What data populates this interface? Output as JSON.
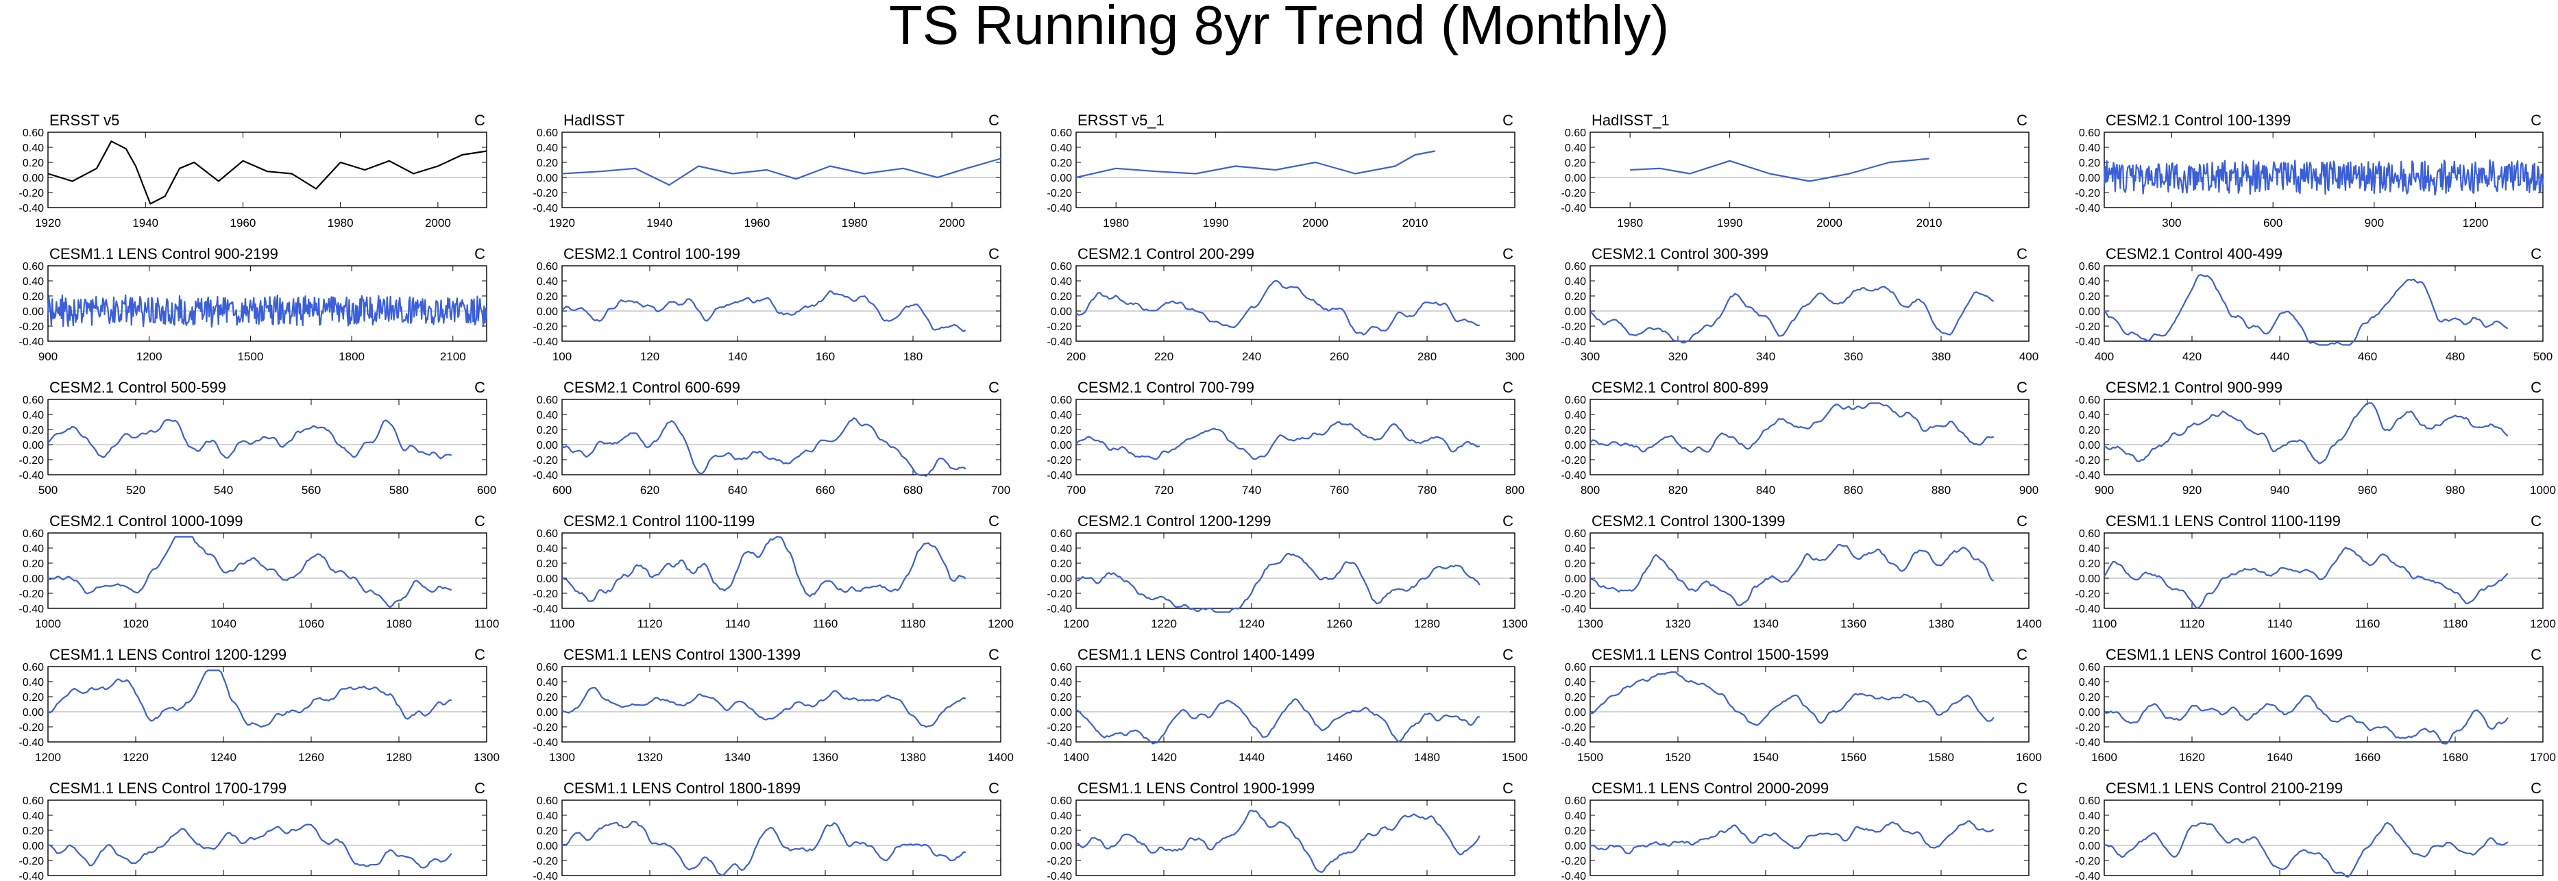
{
  "title": "TS Running 8yr Trend (Monthly)",
  "colors": {
    "obs_black": "#000000",
    "model_blue": "#3a5fd9",
    "zero_line": "#bbbbbb"
  },
  "chart_data": [
    {
      "type": "line",
      "title": "ERSST v5",
      "units": "C",
      "color": "#000000",
      "xlim": [
        1920,
        2010
      ],
      "xticks": [
        1920,
        1940,
        1960,
        1980,
        2000
      ],
      "ylim": [
        -0.4,
        0.6
      ],
      "yticks": [
        -0.4,
        -0.2,
        0,
        0.2,
        0.4,
        0.6
      ],
      "grid": false,
      "x": [
        1920,
        1925,
        1930,
        1933,
        1936,
        1938,
        1941,
        1944,
        1947,
        1950,
        1955,
        1960,
        1965,
        1970,
        1975,
        1980,
        1985,
        1990,
        1995,
        2000,
        2005,
        2010
      ],
      "values": [
        0.05,
        -0.05,
        0.12,
        0.48,
        0.38,
        0.15,
        -0.35,
        -0.25,
        0.12,
        0.2,
        -0.05,
        0.22,
        0.08,
        0.05,
        -0.15,
        0.2,
        0.1,
        0.22,
        0.05,
        0.15,
        0.3,
        0.35
      ]
    },
    {
      "type": "line",
      "title": "HadISST",
      "units": "C",
      "color": "#3a5fd9",
      "xlim": [
        1920,
        2010
      ],
      "xticks": [
        1920,
        1940,
        1960,
        1980,
        2000
      ],
      "ylim": [
        -0.4,
        0.6
      ],
      "yticks": [
        -0.4,
        -0.2,
        0,
        0.2,
        0.4,
        0.6
      ],
      "grid": false,
      "x": [
        1920,
        1928,
        1935,
        1942,
        1948,
        1955,
        1962,
        1968,
        1975,
        1982,
        1990,
        1997,
        2003,
        2010
      ],
      "values": [
        0.05,
        0.08,
        0.12,
        -0.1,
        0.15,
        0.05,
        0.1,
        -0.02,
        0.15,
        0.05,
        0.12,
        0.0,
        0.12,
        0.25
      ]
    },
    {
      "type": "line",
      "title": "ERSST v5_1",
      "units": "C",
      "color": "#3a5fd9",
      "xlim": [
        1976,
        2020
      ],
      "xticks": [
        1980,
        1990,
        2000,
        2010
      ],
      "ylim": [
        -0.4,
        0.6
      ],
      "yticks": [
        -0.4,
        -0.2,
        0,
        0.2,
        0.4,
        0.6
      ],
      "grid": false,
      "x": [
        1976,
        1980,
        1984,
        1988,
        1992,
        1996,
        2000,
        2004,
        2008,
        2010,
        2012
      ],
      "values": [
        0.0,
        0.12,
        0.08,
        0.05,
        0.15,
        0.1,
        0.2,
        0.05,
        0.15,
        0.3,
        0.35
      ]
    },
    {
      "type": "line",
      "title": "HadISST_1",
      "units": "C",
      "color": "#3a5fd9",
      "xlim": [
        1976,
        2020
      ],
      "xticks": [
        1980,
        1990,
        2000,
        2010
      ],
      "ylim": [
        -0.4,
        0.6
      ],
      "yticks": [
        -0.4,
        -0.2,
        0,
        0.2,
        0.4,
        0.6
      ],
      "grid": false,
      "x": [
        1980,
        1983,
        1986,
        1990,
        1994,
        1998,
        2002,
        2006,
        2010
      ],
      "values": [
        0.1,
        0.12,
        0.05,
        0.22,
        0.05,
        -0.05,
        0.05,
        0.2,
        0.25
      ]
    },
    {
      "type": "line",
      "title": "CESM2.1 Control 100-1399",
      "units": "C",
      "color": "#3a5fd9",
      "xlim": [
        100,
        1400
      ],
      "xticks": [
        300,
        600,
        900,
        1200
      ],
      "ylim": [
        -0.4,
        0.6
      ],
      "yticks": [
        -0.4,
        -0.2,
        0,
        0.2,
        0.4,
        0.6
      ],
      "grid": false,
      "noise": {
        "start": 100,
        "end": 1400,
        "seed": 11,
        "amp": 0.18
      }
    },
    {
      "type": "line",
      "title": "CESM1.1 LENS Control 900-2199",
      "units": "C",
      "color": "#3a5fd9",
      "xlim": [
        900,
        2200
      ],
      "xticks": [
        900,
        1200,
        1500,
        1800,
        2100
      ],
      "ylim": [
        -0.4,
        0.6
      ],
      "yticks": [
        -0.4,
        -0.2,
        0,
        0.2,
        0.4,
        0.6
      ],
      "grid": false,
      "noise": {
        "start": 900,
        "end": 2200,
        "seed": 23,
        "amp": 0.16
      }
    },
    {
      "type": "line",
      "title": "CESM2.1 Control 100-199",
      "units": "C",
      "color": "#3a5fd9",
      "xlim": [
        100,
        200
      ],
      "xticks": [
        100,
        120,
        140,
        160,
        180
      ],
      "ylim": [
        -0.4,
        0.6
      ],
      "yticks": [
        -0.4,
        -0.2,
        0,
        0.2,
        0.4,
        0.6
      ],
      "grid": false,
      "noise": {
        "start": 100,
        "end": 192,
        "seed": 31,
        "amp": 0.12
      }
    },
    {
      "type": "line",
      "title": "CESM2.1 Control 200-299",
      "units": "C",
      "color": "#3a5fd9",
      "xlim": [
        200,
        300
      ],
      "xticks": [
        200,
        220,
        240,
        260,
        280,
        300
      ],
      "ylim": [
        -0.4,
        0.6
      ],
      "yticks": [
        -0.4,
        -0.2,
        0,
        0.2,
        0.4,
        0.6
      ],
      "grid": false,
      "noise": {
        "start": 200,
        "end": 292,
        "seed": 37,
        "amp": 0.12
      }
    },
    {
      "type": "line",
      "title": "CESM2.1 Control 300-399",
      "units": "C",
      "color": "#3a5fd9",
      "xlim": [
        300,
        400
      ],
      "xticks": [
        300,
        320,
        340,
        360,
        380,
        400
      ],
      "ylim": [
        -0.4,
        0.6
      ],
      "yticks": [
        -0.4,
        -0.2,
        0,
        0.2,
        0.4,
        0.6
      ],
      "grid": false,
      "noise": {
        "start": 300,
        "end": 392,
        "seed": 41,
        "amp": 0.12
      }
    },
    {
      "type": "line",
      "title": "CESM2.1 Control 400-499",
      "units": "C",
      "color": "#3a5fd9",
      "xlim": [
        400,
        500
      ],
      "xticks": [
        400,
        420,
        440,
        460,
        480,
        500
      ],
      "ylim": [
        -0.4,
        0.6
      ],
      "yticks": [
        -0.4,
        -0.2,
        0,
        0.2,
        0.4,
        0.6
      ],
      "grid": false,
      "noise": {
        "start": 400,
        "end": 492,
        "seed": 43,
        "amp": 0.13
      }
    },
    {
      "type": "line",
      "title": "CESM2.1 Control 500-599",
      "units": "C",
      "color": "#3a5fd9",
      "xlim": [
        500,
        600
      ],
      "xticks": [
        500,
        520,
        540,
        560,
        580,
        600
      ],
      "ylim": [
        -0.4,
        0.6
      ],
      "yticks": [
        -0.4,
        -0.2,
        0,
        0.2,
        0.4,
        0.6
      ],
      "grid": false,
      "noise": {
        "start": 500,
        "end": 592,
        "seed": 47,
        "amp": 0.13
      }
    },
    {
      "type": "line",
      "title": "CESM2.1 Control 600-699",
      "units": "C",
      "color": "#3a5fd9",
      "xlim": [
        600,
        700
      ],
      "xticks": [
        600,
        620,
        640,
        660,
        680,
        700
      ],
      "ylim": [
        -0.4,
        0.6
      ],
      "yticks": [
        -0.4,
        -0.2,
        0,
        0.2,
        0.4,
        0.6
      ],
      "grid": false,
      "noise": {
        "start": 600,
        "end": 692,
        "seed": 53,
        "amp": 0.12
      }
    },
    {
      "type": "line",
      "title": "CESM2.1 Control 700-799",
      "units": "C",
      "color": "#3a5fd9",
      "xlim": [
        700,
        800
      ],
      "xticks": [
        700,
        720,
        740,
        760,
        780,
        800
      ],
      "ylim": [
        -0.4,
        0.6
      ],
      "yticks": [
        -0.4,
        -0.2,
        0,
        0.2,
        0.4,
        0.6
      ],
      "grid": false,
      "noise": {
        "start": 700,
        "end": 792,
        "seed": 59,
        "amp": 0.1
      }
    },
    {
      "type": "line",
      "title": "CESM2.1 Control 800-899",
      "units": "C",
      "color": "#3a5fd9",
      "xlim": [
        800,
        900
      ],
      "xticks": [
        800,
        820,
        840,
        860,
        880,
        900
      ],
      "ylim": [
        -0.4,
        0.6
      ],
      "yticks": [
        -0.4,
        -0.2,
        0,
        0.2,
        0.4,
        0.6
      ],
      "grid": false,
      "noise": {
        "start": 800,
        "end": 892,
        "seed": 61,
        "amp": 0.12
      }
    },
    {
      "type": "line",
      "title": "CESM2.1 Control 900-999",
      "units": "C",
      "color": "#3a5fd9",
      "xlim": [
        900,
        1000
      ],
      "xticks": [
        900,
        920,
        940,
        960,
        980,
        1000
      ],
      "ylim": [
        -0.4,
        0.6
      ],
      "yticks": [
        -0.4,
        -0.2,
        0,
        0.2,
        0.4,
        0.6
      ],
      "grid": false,
      "noise": {
        "start": 900,
        "end": 992,
        "seed": 67,
        "amp": 0.14
      }
    },
    {
      "type": "line",
      "title": "CESM2.1 Control 1000-1099",
      "units": "C",
      "color": "#3a5fd9",
      "xlim": [
        1000,
        1100
      ],
      "xticks": [
        1000,
        1020,
        1040,
        1060,
        1080,
        1100
      ],
      "ylim": [
        -0.4,
        0.6
      ],
      "yticks": [
        -0.4,
        -0.2,
        0,
        0.2,
        0.4,
        0.6
      ],
      "grid": false,
      "noise": {
        "start": 1000,
        "end": 1092,
        "seed": 71,
        "amp": 0.12
      }
    },
    {
      "type": "line",
      "title": "CESM2.1 Control 1100-1199",
      "units": "C",
      "color": "#3a5fd9",
      "xlim": [
        1100,
        1200
      ],
      "xticks": [
        1100,
        1120,
        1140,
        1160,
        1180,
        1200
      ],
      "ylim": [
        -0.4,
        0.6
      ],
      "yticks": [
        -0.4,
        -0.2,
        0,
        0.2,
        0.4,
        0.6
      ],
      "grid": false,
      "noise": {
        "start": 1100,
        "end": 1192,
        "seed": 73,
        "amp": 0.16
      }
    },
    {
      "type": "line",
      "title": "CESM2.1 Control 1200-1299",
      "units": "C",
      "color": "#3a5fd9",
      "xlim": [
        1200,
        1300
      ],
      "xticks": [
        1200,
        1220,
        1240,
        1260,
        1280,
        1300
      ],
      "ylim": [
        -0.4,
        0.6
      ],
      "yticks": [
        -0.4,
        -0.2,
        0,
        0.2,
        0.4,
        0.6
      ],
      "grid": false,
      "noise": {
        "start": 1200,
        "end": 1292,
        "seed": 79,
        "amp": 0.12
      }
    },
    {
      "type": "line",
      "title": "CESM2.1 Control 1300-1399",
      "units": "C",
      "color": "#3a5fd9",
      "xlim": [
        1300,
        1400
      ],
      "xticks": [
        1300,
        1320,
        1340,
        1360,
        1380,
        1400
      ],
      "ylim": [
        -0.4,
        0.6
      ],
      "yticks": [
        -0.4,
        -0.2,
        0,
        0.2,
        0.4,
        0.6
      ],
      "grid": false,
      "noise": {
        "start": 1300,
        "end": 1392,
        "seed": 83,
        "amp": 0.13
      }
    },
    {
      "type": "line",
      "title": "CESM1.1 LENS Control 1100-1199",
      "units": "C",
      "color": "#3a5fd9",
      "xlim": [
        1100,
        1200
      ],
      "xticks": [
        1100,
        1120,
        1140,
        1160,
        1180,
        1200
      ],
      "ylim": [
        -0.4,
        0.6
      ],
      "yticks": [
        -0.4,
        -0.2,
        0,
        0.2,
        0.4,
        0.6
      ],
      "grid": false,
      "noise": {
        "start": 1100,
        "end": 1192,
        "seed": 89,
        "amp": 0.12
      }
    },
    {
      "type": "line",
      "title": "CESM1.1 LENS Control 1200-1299",
      "units": "C",
      "color": "#3a5fd9",
      "xlim": [
        1200,
        1300
      ],
      "xticks": [
        1200,
        1220,
        1240,
        1260,
        1280,
        1300
      ],
      "ylim": [
        -0.4,
        0.6
      ],
      "yticks": [
        -0.4,
        -0.2,
        0,
        0.2,
        0.4,
        0.6
      ],
      "grid": false,
      "noise": {
        "start": 1200,
        "end": 1292,
        "seed": 97,
        "amp": 0.12
      }
    },
    {
      "type": "line",
      "title": "CESM1.1 LENS Control 1300-1399",
      "units": "C",
      "color": "#3a5fd9",
      "xlim": [
        1300,
        1400
      ],
      "xticks": [
        1300,
        1320,
        1340,
        1360,
        1380,
        1400
      ],
      "ylim": [
        -0.4,
        0.6
      ],
      "yticks": [
        -0.4,
        -0.2,
        0,
        0.2,
        0.4,
        0.6
      ],
      "grid": false,
      "noise": {
        "start": 1300,
        "end": 1392,
        "seed": 101,
        "amp": 0.1
      }
    },
    {
      "type": "line",
      "title": "CESM1.1 LENS Control 1400-1499",
      "units": "C",
      "color": "#3a5fd9",
      "xlim": [
        1400,
        1500
      ],
      "xticks": [
        1400,
        1420,
        1440,
        1460,
        1480,
        1500
      ],
      "ylim": [
        -0.4,
        0.6
      ],
      "yticks": [
        -0.4,
        -0.2,
        0,
        0.2,
        0.4,
        0.6
      ],
      "grid": false,
      "noise": {
        "start": 1400,
        "end": 1492,
        "seed": 103,
        "amp": 0.12
      }
    },
    {
      "type": "line",
      "title": "CESM1.1 LENS Control 1500-1599",
      "units": "C",
      "color": "#3a5fd9",
      "xlim": [
        1500,
        1600
      ],
      "xticks": [
        1500,
        1520,
        1540,
        1560,
        1580,
        1600
      ],
      "ylim": [
        -0.4,
        0.6
      ],
      "yticks": [
        -0.4,
        -0.2,
        0,
        0.2,
        0.4,
        0.6
      ],
      "grid": false,
      "noise": {
        "start": 1500,
        "end": 1592,
        "seed": 107,
        "amp": 0.11
      }
    },
    {
      "type": "line",
      "title": "CESM1.1 LENS Control 1600-1699",
      "units": "C",
      "color": "#3a5fd9",
      "xlim": [
        1600,
        1700
      ],
      "xticks": [
        1600,
        1620,
        1640,
        1660,
        1680,
        1700
      ],
      "ylim": [
        -0.4,
        0.6
      ],
      "yticks": [
        -0.4,
        -0.2,
        0,
        0.2,
        0.4,
        0.6
      ],
      "grid": false,
      "noise": {
        "start": 1600,
        "end": 1692,
        "seed": 109,
        "amp": 0.13
      }
    },
    {
      "type": "line",
      "title": "CESM1.1 LENS Control 1700-1799",
      "units": "C",
      "color": "#3a5fd9",
      "xlim": [
        1700,
        1800
      ],
      "xticks": [
        1700,
        1720,
        1740,
        1760,
        1780,
        1800
      ],
      "ylim": [
        -0.4,
        0.6
      ],
      "yticks": [
        -0.4,
        -0.2,
        0,
        0.2,
        0.4,
        0.6
      ],
      "grid": false,
      "noise": {
        "start": 1700,
        "end": 1792,
        "seed": 113,
        "amp": 0.11
      }
    },
    {
      "type": "line",
      "title": "CESM1.1 LENS Control 1800-1899",
      "units": "C",
      "color": "#3a5fd9",
      "xlim": [
        1800,
        1900
      ],
      "xticks": [
        1800,
        1820,
        1840,
        1860,
        1880,
        1900
      ],
      "ylim": [
        -0.4,
        0.6
      ],
      "yticks": [
        -0.4,
        -0.2,
        0,
        0.2,
        0.4,
        0.6
      ],
      "grid": false,
      "noise": {
        "start": 1800,
        "end": 1892,
        "seed": 127,
        "amp": 0.13
      }
    },
    {
      "type": "line",
      "title": "CESM1.1 LENS Control 1900-1999",
      "units": "C",
      "color": "#3a5fd9",
      "xlim": [
        1900,
        2000
      ],
      "xticks": [
        1900,
        1920,
        1940,
        1960,
        1980,
        2000
      ],
      "ylim": [
        -0.4,
        0.6
      ],
      "yticks": [
        -0.4,
        -0.2,
        0,
        0.2,
        0.4,
        0.6
      ],
      "grid": false,
      "noise": {
        "start": 1900,
        "end": 1992,
        "seed": 131,
        "amp": 0.12
      }
    },
    {
      "type": "line",
      "title": "CESM1.1 LENS Control 2000-2099",
      "units": "C",
      "color": "#3a5fd9",
      "xlim": [
        2000,
        2100
      ],
      "xticks": [
        2000,
        2020,
        2040,
        2060,
        2080,
        2100
      ],
      "ylim": [
        -0.4,
        0.6
      ],
      "yticks": [
        -0.4,
        -0.2,
        0,
        0.2,
        0.4,
        0.6
      ],
      "grid": false,
      "noise": {
        "start": 2000,
        "end": 2092,
        "seed": 137,
        "amp": 0.11
      }
    },
    {
      "type": "line",
      "title": "CESM1.1 LENS Control 2100-2199",
      "units": "C",
      "color": "#3a5fd9",
      "xlim": [
        2100,
        2200
      ],
      "xticks": [
        2100,
        2120,
        2140,
        2160,
        2180,
        2200
      ],
      "ylim": [
        -0.4,
        0.6
      ],
      "yticks": [
        -0.4,
        -0.2,
        0,
        0.2,
        0.4,
        0.6
      ],
      "grid": false,
      "noise": {
        "start": 2100,
        "end": 2192,
        "seed": 139,
        "amp": 0.11
      }
    }
  ]
}
